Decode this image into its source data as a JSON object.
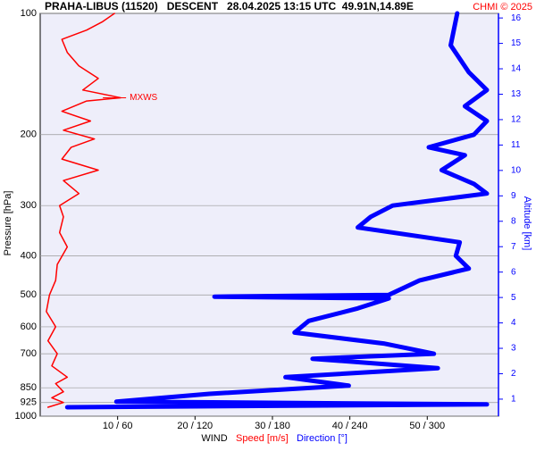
{
  "chart_data": {
    "type": "line",
    "title": "PRAHA-LIBUS (11520)   DESCENT   28.04.2025 13:15 UTC  49.91N,14.89E",
    "credit": "CHMI © 2025",
    "y_label": "Pressure [hPa]",
    "y2_label": "Altitude [km]",
    "x_label": "WIND",
    "yscale": "log",
    "ylim": [
      100,
      1000
    ],
    "yticks": [
      100,
      200,
      300,
      400,
      500,
      600,
      700,
      850,
      925,
      1000
    ],
    "grid": true,
    "xlim": [
      0,
      59.2
    ],
    "x2lim": [
      0,
      355
    ],
    "xticks": [
      {
        "value": 10,
        "label": "10 / 60"
      },
      {
        "value": 20,
        "label": "20 / 120"
      },
      {
        "value": 30,
        "label": "30 / 180"
      },
      {
        "value": 40,
        "label": "40 / 240"
      },
      {
        "value": 50,
        "label": "50 / 300"
      }
    ],
    "y2lim": [
      0.33,
      16.18
    ],
    "y2ticks": [
      1,
      2,
      3,
      4,
      5,
      6,
      7,
      8,
      9,
      10,
      11,
      12,
      13,
      14,
      15,
      16
    ],
    "annotation": {
      "text": "MXWS",
      "pressure": 162,
      "speed": 10.4
    },
    "series": [
      {
        "name": "Speed [m/s]",
        "color": "#ff0000",
        "pressure": [
          100,
          105,
          110,
          116,
          125,
          135,
          145,
          155,
          162,
          165,
          175,
          185,
          195,
          205,
          215,
          230,
          245,
          260,
          280,
          300,
          320,
          350,
          380,
          420,
          460,
          500,
          550,
          600,
          650,
          700,
          750,
          800,
          830,
          870,
          900,
          925,
          950
        ],
        "values": [
          9.6,
          8,
          6,
          2.8,
          3.5,
          5,
          7.5,
          5.5,
          10.4,
          6,
          2.8,
          6.5,
          3,
          7,
          4,
          2.8,
          7.5,
          3,
          5,
          2.5,
          3,
          2.5,
          3.5,
          2.2,
          2,
          1.2,
          0.8,
          2,
          1,
          2.2,
          1.5,
          3.5,
          2,
          3,
          1.5,
          3,
          1
        ]
      },
      {
        "name": "Direction [°]",
        "color": "#0000ff",
        "axis": "x2",
        "pressure": [
          100,
          120,
          140,
          155,
          170,
          185,
          200,
          215,
          225,
          245,
          265,
          280,
          300,
          320,
          340,
          370,
          400,
          430,
          460,
          500,
          505,
          510,
          540,
          580,
          620,
          660,
          700,
          720,
          760,
          800,
          840,
          880,
          920,
          935,
          950
        ],
        "values": [
          323,
          318,
          332,
          346,
          329,
          346,
          336,
          301,
          329,
          311,
          336,
          346,
          273,
          256,
          246,
          325,
          322,
          332,
          294,
          270,
          135,
          270,
          246,
          208,
          197,
          266,
          305,
          211,
          308,
          190,
          239,
          131,
          59,
          346,
          21
        ]
      }
    ]
  }
}
